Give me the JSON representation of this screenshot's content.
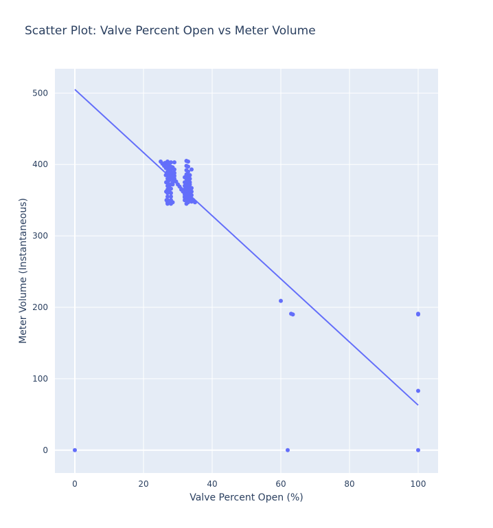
{
  "chart_data": {
    "type": "scatter",
    "title": "Scatter Plot: Valve Percent Open vs Meter Volume",
    "xlabel": "Valve Percent Open (%)",
    "ylabel": "Meter Volume (Instantaneous)",
    "xlim": [
      -5.8,
      105.8
    ],
    "ylim": [
      -32,
      534
    ],
    "xticks": [
      0,
      20,
      40,
      60,
      80,
      100
    ],
    "yticks": [
      0,
      100,
      200,
      300,
      400,
      500
    ],
    "grid": true,
    "legend": "none",
    "colors": {
      "plot_background": "#e5ecf6",
      "grid": "#ffffff",
      "marker": "#636efa",
      "line": "#636efa",
      "text": "#2a3f5f"
    },
    "series": [
      {
        "kind": "markers",
        "x": [
          0,
          62,
          100,
          100,
          100,
          100,
          60,
          63,
          63.5,
          25,
          25.5,
          26,
          26.2,
          26.5,
          26.5,
          26.6,
          26.6,
          26.7,
          26.8,
          27,
          27,
          27,
          27,
          27,
          27,
          27,
          27,
          27,
          27,
          27,
          27,
          27,
          27,
          27.5,
          27.5,
          27.5,
          27.5,
          27.5,
          27.5,
          27.5,
          27.5,
          27.5,
          27.5,
          28,
          28,
          28,
          28,
          28,
          28,
          28,
          28,
          28,
          28,
          28,
          28,
          28.5,
          28.5,
          28.5,
          28.5,
          28.5,
          28.5,
          28.5,
          29,
          29,
          29,
          29,
          29,
          29,
          29.5,
          30,
          30.5,
          31,
          31.5,
          32,
          32,
          32,
          32,
          32,
          32,
          32,
          32,
          32,
          32,
          32.5,
          32.5,
          32.5,
          32.5,
          32.5,
          32.5,
          32.5,
          32.5,
          32.5,
          32.5,
          32.5,
          32.5,
          33,
          33,
          33,
          33,
          33,
          33,
          33,
          33,
          33,
          33,
          33,
          33,
          33.5,
          33.5,
          33.5,
          33.5,
          33.5,
          33.5,
          33.5,
          33.5,
          33.5,
          34,
          34,
          34,
          34,
          34,
          34,
          34.5,
          35
        ],
        "y": [
          0,
          0,
          0,
          83,
          190,
          191,
          209,
          191,
          190,
          404,
          401,
          398,
          402,
          395,
          385,
          375,
          362,
          350,
          403,
          404,
          400,
          395,
          390,
          385,
          380,
          375,
          370,
          365,
          360,
          355,
          350,
          347,
          345,
          402,
          398,
          392,
          388,
          382,
          378,
          372,
          368,
          362,
          348,
          403,
          397,
          392,
          388,
          384,
          380,
          372,
          366,
          360,
          355,
          350,
          345,
          396,
          388,
          384,
          380,
          375,
          372,
          347,
          403,
          393,
          388,
          384,
          380,
          378,
          376,
          372,
          369,
          365,
          362,
          382,
          375,
          370,
          365,
          360,
          355,
          350,
          360,
          358,
          354,
          405,
          398,
          392,
          386,
          380,
          375,
          370,
          365,
          360,
          355,
          350,
          345,
          404,
          397,
          390,
          384,
          378,
          372,
          366,
          362,
          358,
          354,
          350,
          347,
          385,
          380,
          375,
          372,
          368,
          364,
          360,
          356,
          352,
          393,
          367,
          362,
          357,
          352,
          348,
          350,
          347
        ]
      },
      {
        "kind": "line",
        "x": [
          0,
          100
        ],
        "y": [
          505,
          63
        ]
      }
    ]
  }
}
